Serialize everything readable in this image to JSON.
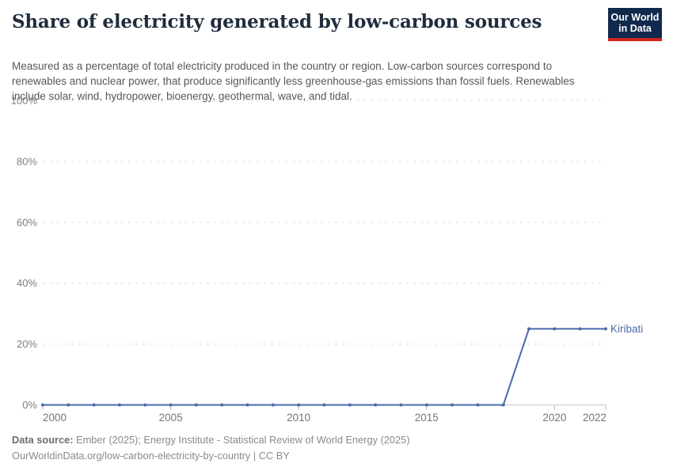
{
  "header": {
    "title": "Share of electricity generated by low-carbon sources",
    "subtitle": "Measured as a percentage of total electricity produced in the country or region. Low-carbon sources correspond to renewables and nuclear power, that produce significantly less greenhouse-gas emissions than fossil fuels. Renewables include solar, wind, hydropower, bioenergy, geothermal, wave, and tidal.",
    "logo": {
      "line1": "Our World",
      "line2": "in Data",
      "background_color": "#12294e",
      "bar_color": "#cf2722"
    }
  },
  "chart_data": {
    "type": "line",
    "title": "Share of electricity generated by low-carbon sources",
    "x": [
      2000,
      2001,
      2002,
      2003,
      2004,
      2005,
      2006,
      2007,
      2008,
      2009,
      2010,
      2011,
      2012,
      2013,
      2014,
      2015,
      2016,
      2017,
      2018,
      2019,
      2020,
      2021,
      2022
    ],
    "series": [
      {
        "name": "Kiribati",
        "color": "#4a6ba8",
        "values": [
          0,
          0,
          0,
          0,
          0,
          0,
          0,
          0,
          0,
          0,
          0,
          0,
          0,
          0,
          0,
          0,
          0,
          0,
          0,
          25,
          25,
          25,
          25
        ]
      }
    ],
    "xlabel": "",
    "ylabel": "",
    "ylim": [
      0,
      100
    ],
    "xlim": [
      2000,
      2022
    ],
    "yticks": [
      0,
      20,
      40,
      60,
      80,
      100
    ],
    "ytick_suffix": "%",
    "xticks": [
      2000,
      2005,
      2010,
      2015,
      2020,
      2022
    ],
    "grid": true,
    "gridline_style": "dashed",
    "legend_position": "end-of-line",
    "marker": "dot-every-year",
    "colors": {
      "gridline": "#dcdcdc",
      "axis_line": "#c8c8c8",
      "tick_mark": "#b3b3b3",
      "y_tick_label": "#7e7e7e",
      "x_tick_label": "#777777",
      "series_label": "#4a6ba8"
    }
  },
  "footer": {
    "datasource_label": "Data source:",
    "datasource_text": " Ember (2025); Energy Institute - Statistical Review of World Energy (2025)",
    "url_line": "OurWorldinData.org/low-carbon-electricity-by-country | CC BY"
  }
}
